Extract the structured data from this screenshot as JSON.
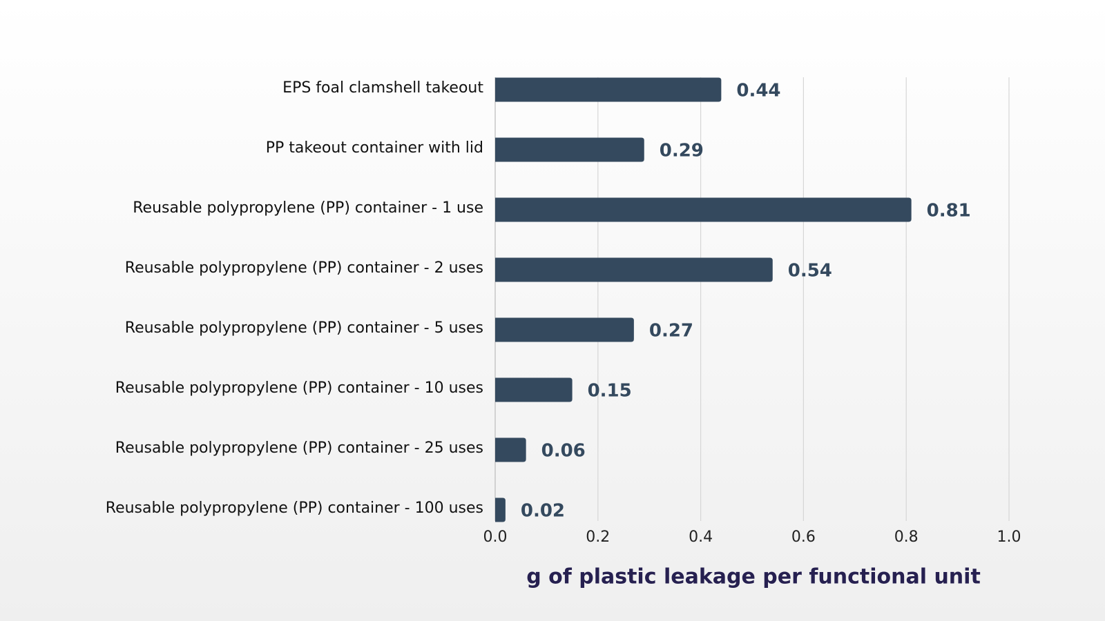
{
  "chart_data": {
    "type": "barh",
    "categories": [
      "EPS foal clamshell takeout",
      "PP takeout container with lid",
      "Reusable polypropylene (PP) container - 1 use",
      "Reusable polypropylene (PP) container - 2 uses",
      "Reusable polypropylene (PP) container - 5 uses",
      "Reusable polypropylene (PP) container - 10 uses",
      "Reusable polypropylene (PP) container - 25 uses",
      "Reusable polypropylene (PP) container - 100 uses"
    ],
    "values": [
      0.44,
      0.29,
      0.81,
      0.54,
      0.27,
      0.15,
      0.06,
      0.02
    ],
    "color": "#34495e",
    "xlabel": "g of plastic leakage per functional unit",
    "xlim": [
      0,
      1
    ],
    "xticks": [
      {
        "value": 0,
        "label": "0.0"
      },
      0.2,
      0.4,
      0.6,
      0.8,
      {
        "value": 1,
        "label": "1.0"
      }
    ],
    "grid": true
  }
}
